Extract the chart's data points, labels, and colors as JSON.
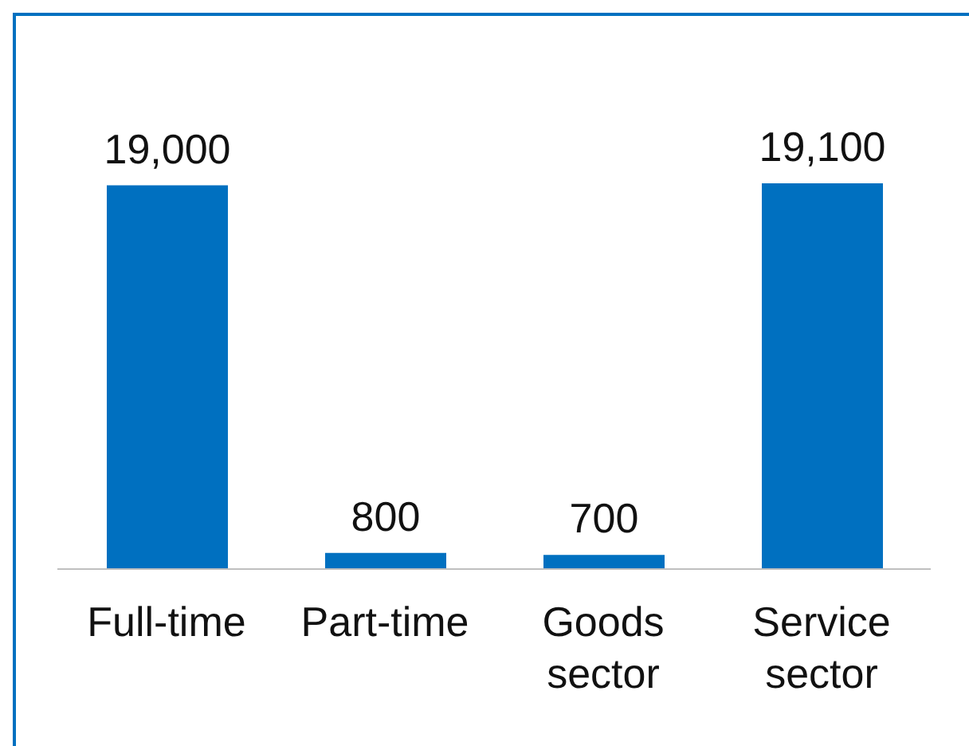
{
  "chart_data": {
    "type": "bar",
    "categories": [
      "Full-time",
      "Part-time",
      "Goods sector",
      "Service sector"
    ],
    "values": [
      19000,
      800,
      700,
      19100
    ],
    "value_labels": [
      "19,000",
      "800",
      "700",
      "19,100"
    ],
    "color": "#0070c0",
    "grid": false,
    "legend": false
  }
}
